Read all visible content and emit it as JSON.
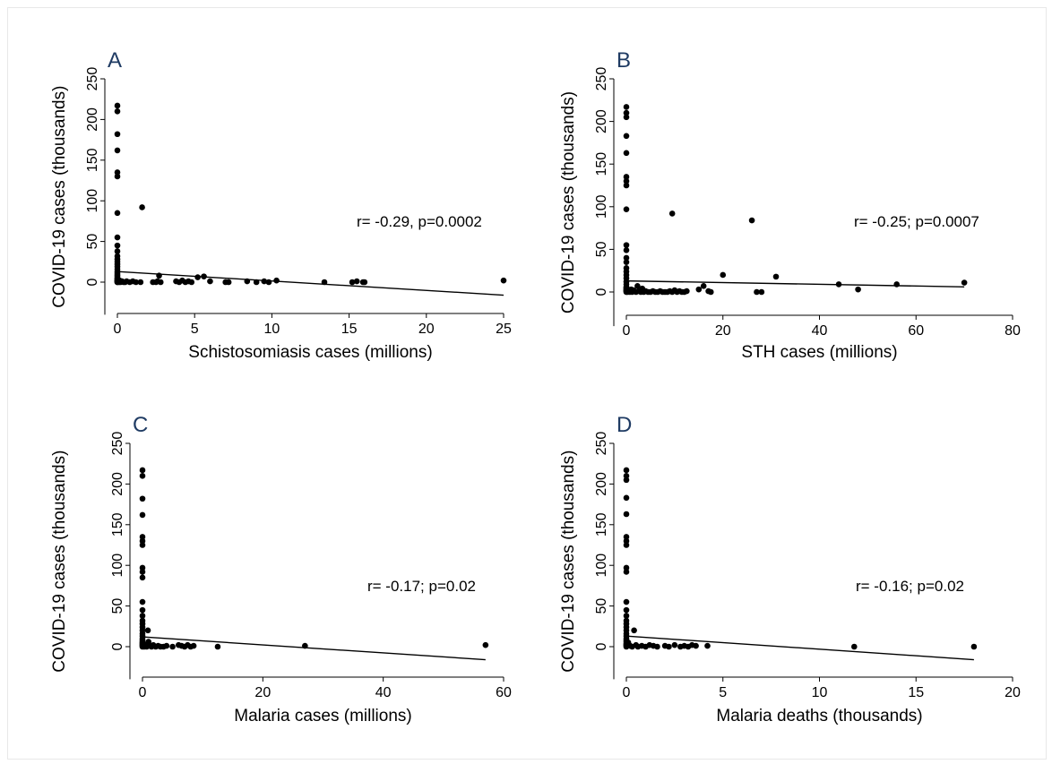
{
  "figure": {
    "panels_order": [
      "A",
      "B",
      "C",
      "D"
    ]
  },
  "chart_data": [
    {
      "type": "scatter",
      "panel_label": "A",
      "xlabel": "Schistosomiasis cases (millions)",
      "ylabel": "COVID-19 cases (thousands)",
      "xlim": [
        0,
        25
      ],
      "ylim": [
        0,
        250
      ],
      "xticks": [
        0,
        5,
        10,
        15,
        20,
        25
      ],
      "yticks": [
        0,
        50,
        100,
        150,
        200,
        250
      ],
      "annotation": "r= -0.29, p=0.0002",
      "fit_line": {
        "x": [
          0,
          25
        ],
        "y": [
          13,
          -16
        ]
      },
      "points": {
        "x": [
          0,
          0,
          0,
          0,
          0,
          0,
          0,
          0,
          0,
          0,
          0,
          0,
          0,
          0,
          0,
          0,
          0,
          0,
          0,
          0,
          0,
          0,
          0,
          0,
          0,
          0,
          0,
          0,
          0,
          0.05,
          0.1,
          0.15,
          0.2,
          0.3,
          0.4,
          0.5,
          0.6,
          0.8,
          1.0,
          1.2,
          1.5,
          2.3,
          2.5,
          2.6,
          2.7,
          2.8,
          3.8,
          4.0,
          4.2,
          4.4,
          4.6,
          4.8,
          5.2,
          5.6,
          6.0,
          7.0,
          7.2,
          8.4,
          9.0,
          9.5,
          9.8,
          10.3,
          13.4,
          15.2,
          15.5,
          15.9,
          16.0,
          25.0,
          1.6
        ],
        "y": [
          217,
          210,
          182,
          162,
          135,
          130,
          85,
          55,
          45,
          38,
          32,
          28,
          25,
          22,
          19,
          16,
          13,
          11,
          9,
          7,
          5,
          3,
          2,
          1,
          0,
          1,
          3,
          5,
          0,
          1,
          0,
          2,
          0,
          1,
          0,
          0,
          1,
          0,
          1,
          0,
          0,
          0,
          0,
          1,
          8,
          0,
          1,
          0,
          2,
          0,
          1,
          0,
          6,
          7,
          1,
          0,
          0,
          1,
          0,
          1,
          0,
          2,
          0,
          0,
          1,
          0,
          0,
          2,
          92
        ]
      }
    },
    {
      "type": "scatter",
      "panel_label": "B",
      "xlabel": "STH cases (millions)",
      "ylabel": "COVID-19 cases (thousands)",
      "xlim": [
        0,
        80
      ],
      "ylim": [
        0,
        250
      ],
      "xticks": [
        0,
        20,
        40,
        60,
        80
      ],
      "yticks": [
        0,
        50,
        100,
        150,
        200,
        250
      ],
      "annotation": "r= -0.25; p=0.0007",
      "fit_line": {
        "x": [
          0,
          70
        ],
        "y": [
          13,
          6
        ]
      },
      "points": {
        "x": [
          0,
          0,
          0,
          0,
          0,
          0,
          0,
          0,
          0,
          0,
          0,
          0,
          0,
          0,
          0,
          0,
          0,
          0,
          0,
          0,
          0,
          0,
          0,
          0,
          0,
          0,
          0,
          0.2,
          0.3,
          0.5,
          0.7,
          1,
          1.2,
          1.5,
          2,
          2.3,
          2.6,
          3,
          3.3,
          3.6,
          4,
          4.5,
          5,
          5.5,
          6,
          6.5,
          7,
          7.5,
          8,
          8.5,
          9,
          9.5,
          10,
          10.5,
          11,
          11.5,
          12,
          12.5,
          15,
          16,
          17,
          17.5,
          20,
          27,
          28,
          31,
          44,
          48,
          56,
          70,
          9.5,
          26
        ],
        "y": [
          217,
          210,
          205,
          183,
          163,
          135,
          130,
          125,
          97,
          55,
          49,
          40,
          35,
          28,
          24,
          20,
          16,
          12,
          9,
          6,
          4,
          2,
          1,
          0,
          3,
          1,
          5,
          0,
          2,
          1,
          0,
          3,
          0,
          2,
          0,
          7,
          1,
          0,
          4,
          0,
          1,
          0,
          0,
          1,
          0,
          0,
          1,
          0,
          0,
          0,
          1,
          0,
          2,
          0,
          1,
          0,
          0,
          1,
          3,
          7,
          1,
          0,
          20,
          0,
          0,
          18,
          9,
          3,
          9,
          11,
          92,
          84
        ]
      }
    },
    {
      "type": "scatter",
      "panel_label": "C",
      "xlabel": "Malaria cases (millions)",
      "ylabel": "COVID-19 cases (thousands)",
      "xlim": [
        0,
        60
      ],
      "ylim": [
        0,
        250
      ],
      "xticks": [
        0,
        20,
        40,
        60
      ],
      "yticks": [
        0,
        50,
        100,
        150,
        200,
        250
      ],
      "annotation": "r= -0.17; p=0.02",
      "fit_line": {
        "x": [
          0,
          57
        ],
        "y": [
          12,
          -16
        ]
      },
      "points": {
        "x": [
          0,
          0,
          0,
          0,
          0,
          0,
          0,
          0,
          0,
          0,
          0,
          0,
          0,
          0,
          0,
          0,
          0,
          0,
          0,
          0,
          0,
          0,
          0,
          0,
          0,
          0,
          0,
          0,
          0.2,
          0.3,
          0.5,
          0.7,
          0.9,
          1.0,
          1.2,
          1.5,
          1.8,
          2.2,
          2.6,
          3.0,
          3.5,
          4.0,
          5.0,
          6.0,
          6.5,
          7.0,
          7.5,
          8.0,
          8.5,
          12.5,
          27,
          57
        ],
        "y": [
          217,
          210,
          182,
          162,
          135,
          130,
          125,
          97,
          92,
          85,
          55,
          45,
          38,
          32,
          28,
          24,
          20,
          16,
          13,
          10,
          8,
          6,
          4,
          2,
          1,
          0,
          3,
          5,
          1,
          0,
          2,
          0,
          20,
          6,
          1,
          0,
          2,
          0,
          1,
          0,
          0,
          1,
          0,
          2,
          1,
          0,
          2,
          0,
          1,
          0,
          1,
          2
        ]
      }
    },
    {
      "type": "scatter",
      "panel_label": "D",
      "xlabel": "Malaria deaths (thousands)",
      "ylabel": "COVID-19 cases (thousands)",
      "xlim": [
        0,
        20
      ],
      "ylim": [
        0,
        250
      ],
      "xticks": [
        0,
        5,
        10,
        15,
        20
      ],
      "yticks": [
        0,
        50,
        100,
        150,
        200,
        250
      ],
      "annotation": "r= -0.16; p=0.02",
      "fit_line": {
        "x": [
          0,
          18
        ],
        "y": [
          13,
          -16
        ]
      },
      "points": {
        "x": [
          0,
          0,
          0,
          0,
          0,
          0,
          0,
          0,
          0,
          0,
          0,
          0,
          0,
          0,
          0,
          0,
          0,
          0,
          0,
          0,
          0,
          0,
          0,
          0,
          0,
          0,
          0,
          0.1,
          0.2,
          0.3,
          0.4,
          0.5,
          0.6,
          0.8,
          1.0,
          1.2,
          1.4,
          1.6,
          2.0,
          2.2,
          2.5,
          2.8,
          3.0,
          3.2,
          3.4,
          3.6,
          4.2,
          11.8,
          18.0
        ],
        "y": [
          217,
          210,
          205,
          183,
          163,
          135,
          130,
          125,
          97,
          92,
          55,
          45,
          38,
          32,
          28,
          24,
          20,
          16,
          13,
          10,
          8,
          6,
          4,
          2,
          1,
          0,
          3,
          5,
          1,
          0,
          20,
          2,
          0,
          1,
          0,
          2,
          1,
          0,
          1,
          0,
          2,
          0,
          1,
          0,
          2,
          1,
          1,
          0,
          0
        ]
      }
    }
  ]
}
